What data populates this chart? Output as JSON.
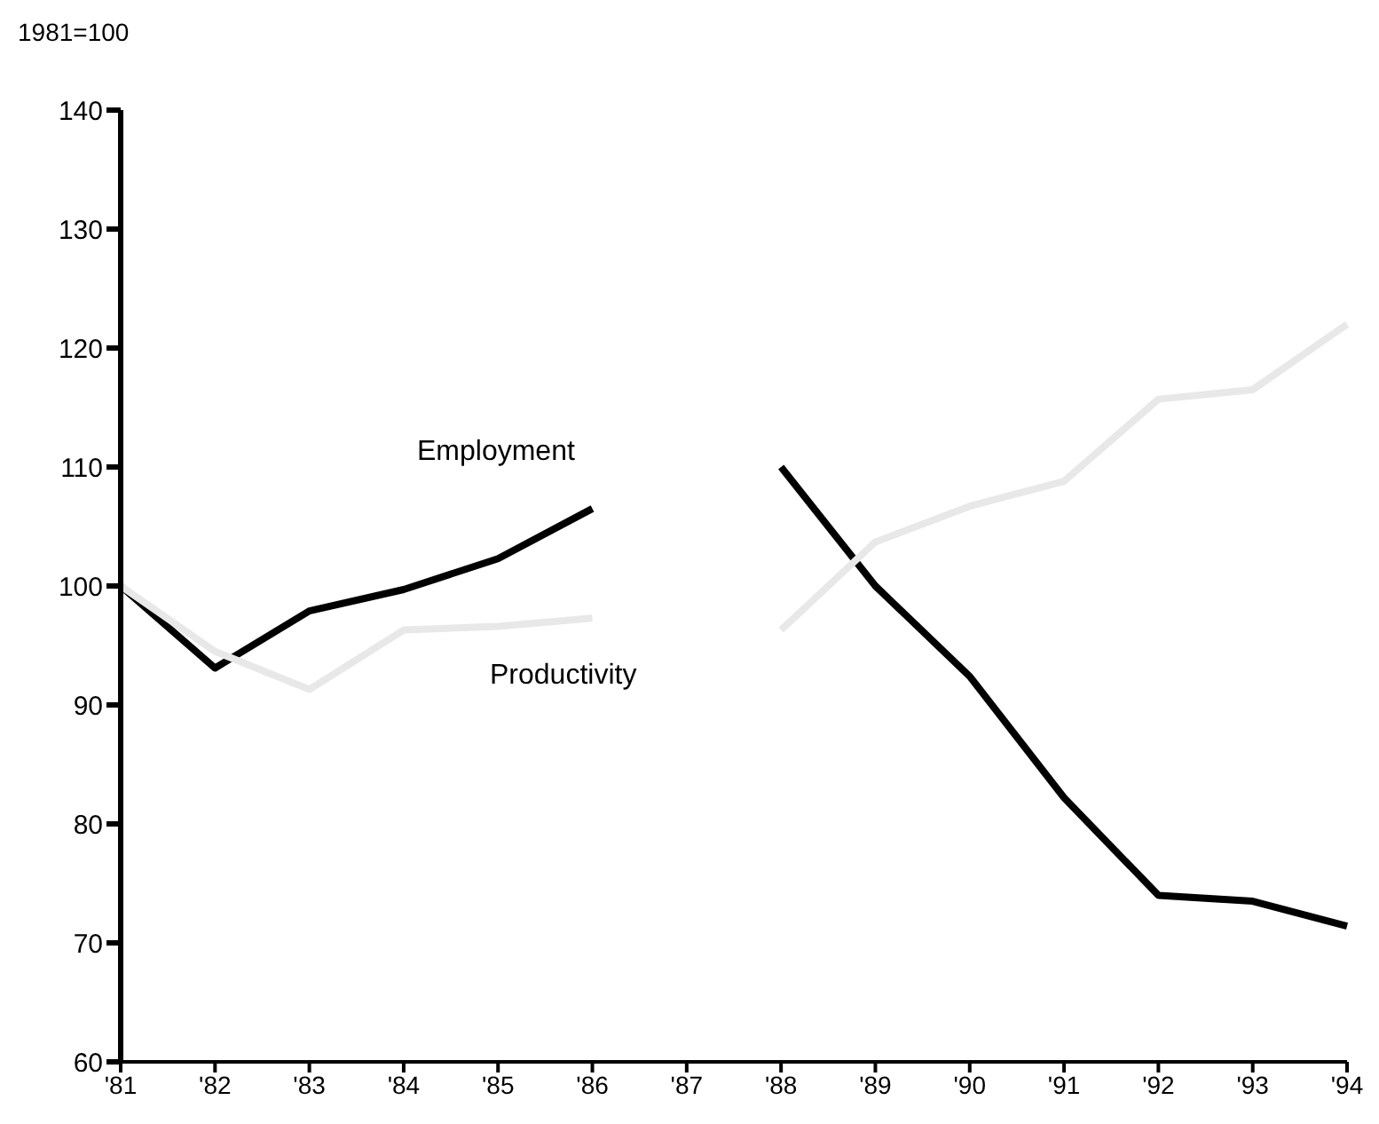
{
  "chart_data": {
    "type": "line",
    "ylabel": "1981=100",
    "categories": [
      "'81",
      "'82",
      "'83",
      "'84",
      "'85",
      "'86",
      "'87",
      "'88",
      "'89",
      "'90",
      "'91",
      "'92",
      "'93",
      "'94"
    ],
    "ylim": [
      60,
      140
    ],
    "yticks": [
      60,
      70,
      80,
      90,
      100,
      110,
      120,
      130,
      140
    ],
    "grid": false,
    "legend": false,
    "marker": "none",
    "line_style": "solid",
    "series": [
      {
        "name": "Employment",
        "color": "#000000",
        "values": [
          100,
          93.1,
          97.9,
          99.7,
          102.3,
          106.5,
          null,
          110,
          100,
          92.4,
          82.2,
          74,
          73.5,
          71.4
        ]
      },
      {
        "name": "Productivity",
        "color": "#e8e8e8",
        "values": [
          100,
          94.5,
          91.3,
          96.3,
          96.6,
          97.3,
          null,
          96.3,
          103.7,
          106.7,
          108.8,
          115.7,
          116.5,
          122
        ]
      }
    ]
  }
}
